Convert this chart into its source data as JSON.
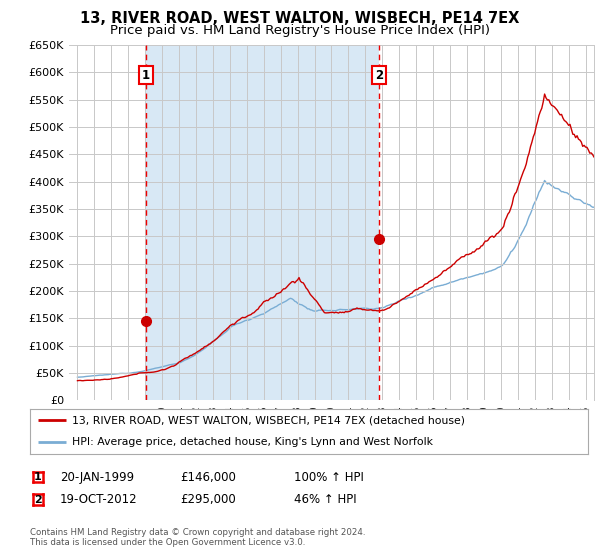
{
  "title": "13, RIVER ROAD, WEST WALTON, WISBECH, PE14 7EX",
  "subtitle": "Price paid vs. HM Land Registry's House Price Index (HPI)",
  "legend_line1": "13, RIVER ROAD, WEST WALTON, WISBECH, PE14 7EX (detached house)",
  "legend_line2": "HPI: Average price, detached house, King's Lynn and West Norfolk",
  "footer": "Contains HM Land Registry data © Crown copyright and database right 2024.\nThis data is licensed under the Open Government Licence v3.0.",
  "transaction1_date": "20-JAN-1999",
  "transaction1_price": "£146,000",
  "transaction1_pct": "100% ↑ HPI",
  "transaction2_date": "19-OCT-2012",
  "transaction2_price": "£295,000",
  "transaction2_pct": "46% ↑ HPI",
  "sale1_x": 1999.05,
  "sale1_y": 146000,
  "sale2_x": 2012.8,
  "sale2_y": 295000,
  "vline1_x": 1999.05,
  "vline2_x": 2012.8,
  "hpi_color": "#7aadd4",
  "price_color": "#cc0000",
  "vline_color": "#ee0000",
  "shade_color": "#d8e8f5",
  "background_color": "#ffffff",
  "grid_color": "#c8c8c8",
  "ylim": [
    0,
    650000
  ],
  "xlim": [
    1994.5,
    2025.5
  ],
  "ylabel_step": 50000,
  "title_fontsize": 10.5,
  "subtitle_fontsize": 9.5
}
